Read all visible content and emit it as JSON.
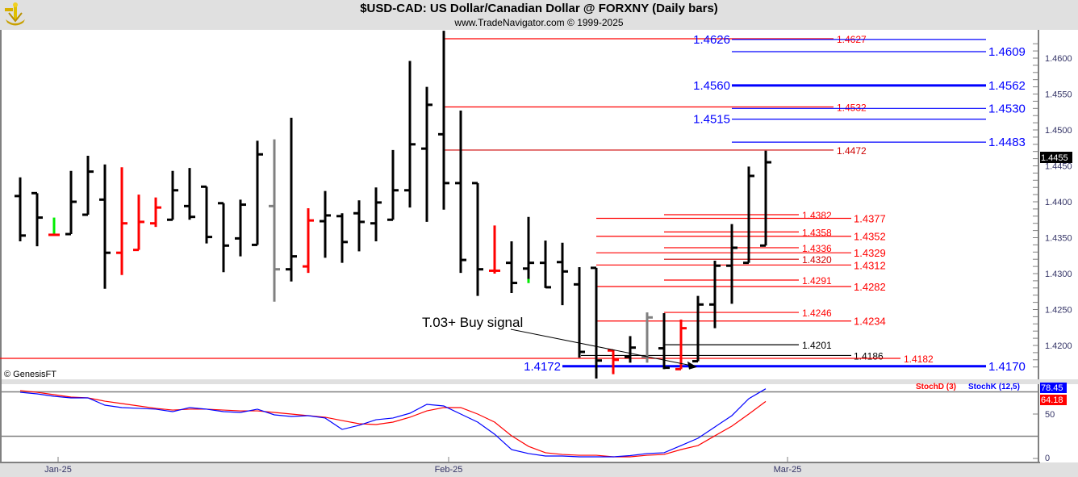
{
  "header": {
    "title": "$USD-CAD:  US Dollar/Canadian Dollar @ FORXNY  (Daily bars)",
    "subtitle": "www.TradeNavigator.com © 1999-2025",
    "logo": "sextant-logo"
  },
  "chart_data": [
    {
      "type": "ohlc",
      "ylim": [
        1.415,
        1.464
      ],
      "y_ticks": [
        "1.4200",
        "1.4250",
        "1.4300",
        "1.4350",
        "1.4400",
        "1.4450",
        "1.4500",
        "1.4550",
        "1.4600"
      ],
      "x_ticks": [
        "Jan-25",
        "Feb-25",
        "Mar-25"
      ],
      "last_price": "1.4455",
      "copyright": "© GenesisFT",
      "bar_colors": {
        "black": "#000000",
        "red": "#ff0000",
        "gray": "#808080",
        "green": "#00ee00"
      },
      "bars": [
        {
          "o": 1.4408,
          "h": 1.4434,
          "l": 1.4345,
          "c": 1.4353,
          "color": "black"
        },
        {
          "o": 1.4412,
          "h": 1.4412,
          "l": 1.4338,
          "c": 1.4378,
          "color": "black"
        },
        {
          "o": 1.4354,
          "h": 1.4378,
          "l": 1.4354,
          "c": 1.4354,
          "color": "green"
        },
        {
          "o": 1.4355,
          "h": 1.4443,
          "l": 1.4355,
          "c": 1.44,
          "color": "black"
        },
        {
          "o": 1.4382,
          "h": 1.4464,
          "l": 1.4382,
          "c": 1.4442,
          "color": "black"
        },
        {
          "o": 1.4403,
          "h": 1.4452,
          "l": 1.4279,
          "c": 1.4329,
          "color": "black"
        },
        {
          "o": 1.4329,
          "h": 1.4448,
          "l": 1.4298,
          "c": 1.437,
          "color": "red"
        },
        {
          "o": 1.4333,
          "h": 1.441,
          "l": 1.4333,
          "c": 1.4372,
          "color": "red"
        },
        {
          "o": 1.437,
          "h": 1.4406,
          "l": 1.4365,
          "c": 1.4392,
          "color": "red"
        },
        {
          "o": 1.4375,
          "h": 1.4443,
          "l": 1.4375,
          "c": 1.4416,
          "color": "black"
        },
        {
          "o": 1.4394,
          "h": 1.4447,
          "l": 1.4375,
          "c": 1.4379,
          "color": "black"
        },
        {
          "o": 1.4421,
          "h": 1.4421,
          "l": 1.4342,
          "c": 1.4351,
          "color": "black"
        },
        {
          "o": 1.4398,
          "h": 1.4398,
          "l": 1.4302,
          "c": 1.4339,
          "color": "black"
        },
        {
          "o": 1.4349,
          "h": 1.4403,
          "l": 1.4324,
          "c": 1.4396,
          "color": "black"
        },
        {
          "o": 1.434,
          "h": 1.4485,
          "l": 1.434,
          "c": 1.4466,
          "color": "black"
        },
        {
          "o": 1.4394,
          "h": 1.4487,
          "l": 1.4261,
          "c": 1.4306,
          "color": "gray"
        },
        {
          "o": 1.4306,
          "h": 1.4517,
          "l": 1.4289,
          "c": 1.4324,
          "color": "black"
        },
        {
          "o": 1.431,
          "h": 1.4391,
          "l": 1.4301,
          "c": 1.4374,
          "color": "red"
        },
        {
          "o": 1.4373,
          "h": 1.4415,
          "l": 1.4322,
          "c": 1.4381,
          "color": "black"
        },
        {
          "o": 1.438,
          "h": 1.4384,
          "l": 1.4315,
          "c": 1.4344,
          "color": "black"
        },
        {
          "o": 1.4384,
          "h": 1.4402,
          "l": 1.4331,
          "c": 1.4372,
          "color": "black"
        },
        {
          "o": 1.437,
          "h": 1.442,
          "l": 1.4345,
          "c": 1.4399,
          "color": "black"
        },
        {
          "o": 1.4375,
          "h": 1.4472,
          "l": 1.4375,
          "c": 1.4416,
          "color": "black"
        },
        {
          "o": 1.4416,
          "h": 1.4596,
          "l": 1.4392,
          "c": 1.448,
          "color": "black"
        },
        {
          "o": 1.4474,
          "h": 1.456,
          "l": 1.4372,
          "c": 1.4535,
          "color": "black"
        },
        {
          "o": 1.4494,
          "h": 1.4638,
          "l": 1.4389,
          "c": 1.4426,
          "color": "black"
        },
        {
          "o": 1.4426,
          "h": 1.4527,
          "l": 1.4301,
          "c": 1.4319,
          "color": "black"
        },
        {
          "o": 1.4426,
          "h": 1.4426,
          "l": 1.4269,
          "c": 1.4306,
          "color": "black"
        },
        {
          "o": 1.4304,
          "h": 1.4367,
          "l": 1.43,
          "c": 1.4304,
          "color": "red"
        },
        {
          "o": 1.4315,
          "h": 1.4345,
          "l": 1.4273,
          "c": 1.4287,
          "color": "black"
        },
        {
          "o": 1.4307,
          "h": 1.4379,
          "l": 1.4287,
          "c": 1.4315,
          "color": "black",
          "tail": "green"
        },
        {
          "o": 1.4315,
          "h": 1.4346,
          "l": 1.428,
          "c": 1.4281,
          "color": "black"
        },
        {
          "o": 1.4316,
          "h": 1.4343,
          "l": 1.4256,
          "c": 1.4303,
          "color": "black"
        },
        {
          "o": 1.4285,
          "h": 1.4309,
          "l": 1.4183,
          "c": 1.4191,
          "color": "black"
        },
        {
          "o": 1.4308,
          "h": 1.4308,
          "l": 1.4154,
          "c": 1.4179,
          "color": "black"
        },
        {
          "o": 1.4193,
          "h": 1.4194,
          "l": 1.416,
          "c": 1.418,
          "color": "red"
        },
        {
          "o": 1.4184,
          "h": 1.4213,
          "l": 1.4176,
          "c": 1.4197,
          "color": "black"
        },
        {
          "o": 1.4184,
          "h": 1.4246,
          "l": 1.4176,
          "c": 1.4239,
          "color": "gray"
        },
        {
          "o": 1.4196,
          "h": 1.4245,
          "l": 1.4167,
          "c": 1.4169,
          "color": "black"
        },
        {
          "o": 1.4167,
          "h": 1.4236,
          "l": 1.4167,
          "c": 1.4224,
          "color": "red"
        },
        {
          "o": 1.4178,
          "h": 1.4269,
          "l": 1.4178,
          "c": 1.4257,
          "color": "black"
        },
        {
          "o": 1.4257,
          "h": 1.4318,
          "l": 1.4224,
          "c": 1.4311,
          "color": "black"
        },
        {
          "o": 1.4311,
          "h": 1.4369,
          "l": 1.4258,
          "c": 1.4336,
          "color": "black"
        },
        {
          "o": 1.4315,
          "h": 1.4449,
          "l": 1.4315,
          "c": 1.4436,
          "color": "black"
        },
        {
          "o": 1.4339,
          "h": 1.4471,
          "l": 1.4339,
          "c": 1.4455,
          "color": "black"
        }
      ],
      "levels": [
        {
          "group": "red-top",
          "value": 1.4627,
          "label": "1.4627",
          "color": "#ff0000"
        },
        {
          "group": "red-top",
          "value": 1.4532,
          "label": "1.4532",
          "color": "#ff0000"
        },
        {
          "group": "red-top",
          "value": 1.4472,
          "label": "1.4472",
          "color": "#cc0000"
        },
        {
          "group": "blue",
          "value": 1.4626,
          "left_label": "1.4626",
          "color": "#0000ff"
        },
        {
          "group": "blue",
          "value": 1.4609,
          "label": "1.4609",
          "color": "#0000ff"
        },
        {
          "group": "blue",
          "value": 1.4562,
          "left_label": "1.4560",
          "label": "1.4562",
          "color": "#0000ff",
          "thick": true
        },
        {
          "group": "blue",
          "value": 1.453,
          "label": "1.4530",
          "color": "#0000ff"
        },
        {
          "group": "blue",
          "value": 1.4515,
          "left_label": "1.4515",
          "color": "#0000ff"
        },
        {
          "group": "blue",
          "value": 1.4483,
          "label": "1.4483",
          "color": "#0000ff"
        },
        {
          "group": "red-long",
          "value": 1.4377,
          "label": "1.4377",
          "color": "#ff0000"
        },
        {
          "group": "red-long",
          "value": 1.4352,
          "label": "1.4352",
          "color": "#ff0000"
        },
        {
          "group": "red-long",
          "value": 1.4329,
          "label": "1.4329",
          "color": "#ff0000"
        },
        {
          "group": "red-long",
          "value": 1.4312,
          "label": "1.4312",
          "color": "#ff0000"
        },
        {
          "group": "red-long",
          "value": 1.4282,
          "label": "1.4282",
          "color": "#ff0000"
        },
        {
          "group": "red-long",
          "value": 1.4234,
          "label": "1.4234",
          "color": "#ff0000"
        },
        {
          "group": "red-short",
          "value": 1.4382,
          "label": "1.4382",
          "color": "#ff0000"
        },
        {
          "group": "red-short",
          "value": 1.4358,
          "label": "1.4358",
          "color": "#ff0000"
        },
        {
          "group": "red-short",
          "value": 1.4336,
          "label": "1.4336",
          "color": "#ff0000"
        },
        {
          "group": "red-short",
          "value": 1.432,
          "label": "1.4320",
          "color": "#cc0000"
        },
        {
          "group": "red-short",
          "value": 1.4291,
          "label": "1.4291",
          "color": "#ff0000"
        },
        {
          "group": "red-short",
          "value": 1.4246,
          "label": "1.4246",
          "color": "#ff0000"
        },
        {
          "group": "black-short",
          "value": 1.4201,
          "label": "1.4201",
          "color": "#000000"
        },
        {
          "group": "black-long",
          "value": 1.4186,
          "label": "1.4186",
          "color": "#000000"
        },
        {
          "group": "red-full",
          "value": 1.4182,
          "label": "1.4182",
          "color": "#ff0000"
        },
        {
          "group": "blue-bottom",
          "value": 1.4171,
          "left_label": "1.4172",
          "label": "1.4170",
          "color": "#0000ff",
          "thick": true
        }
      ],
      "annotation": {
        "text": "T.03+ Buy signal",
        "arrow_to_bar": 39,
        "arrow_to_price": 1.417
      }
    },
    {
      "type": "line",
      "ylim": [
        0,
        100
      ],
      "y_ticks": [
        "50",
        "0"
      ],
      "guide_lines": [
        75,
        25
      ],
      "series": [
        {
          "name": "StochD (3)",
          "color": "#ff0000",
          "last": "64.18",
          "values": [
            76.4,
            74.5,
            71.8,
            69.1,
            68.2,
            64.5,
            61.8,
            59.1,
            56.4,
            54.5,
            55.5,
            55.5,
            54.5,
            53.6,
            53.6,
            51.8,
            50.0,
            48.2,
            46.4,
            42.7,
            39.1,
            38.2,
            40.9,
            46.4,
            53.6,
            57.3,
            57.3,
            50.0,
            40.9,
            25.5,
            13.6,
            6.4,
            4.5,
            3.6,
            3.6,
            1.8,
            1.8,
            3.6,
            4.5,
            10.0,
            14.5,
            25.5,
            36.4,
            50.0,
            64.18
          ]
        },
        {
          "name": "StochK (12,5)",
          "color": "#0000ff",
          "last": "78.45",
          "values": [
            74.5,
            72.7,
            70.0,
            68.2,
            68.2,
            60.0,
            57.3,
            56.4,
            55.5,
            52.7,
            57.3,
            55.5,
            52.7,
            51.8,
            55.5,
            49.1,
            47.3,
            48.2,
            45.5,
            32.7,
            37.3,
            43.6,
            45.5,
            50.9,
            60.9,
            59.1,
            50.0,
            40.9,
            27.3,
            10.0,
            5.5,
            2.7,
            2.7,
            1.8,
            1.8,
            1.8,
            3.2,
            5.5,
            6.4,
            14.5,
            22.7,
            35.5,
            48.2,
            67.3,
            78.45
          ]
        }
      ]
    }
  ]
}
